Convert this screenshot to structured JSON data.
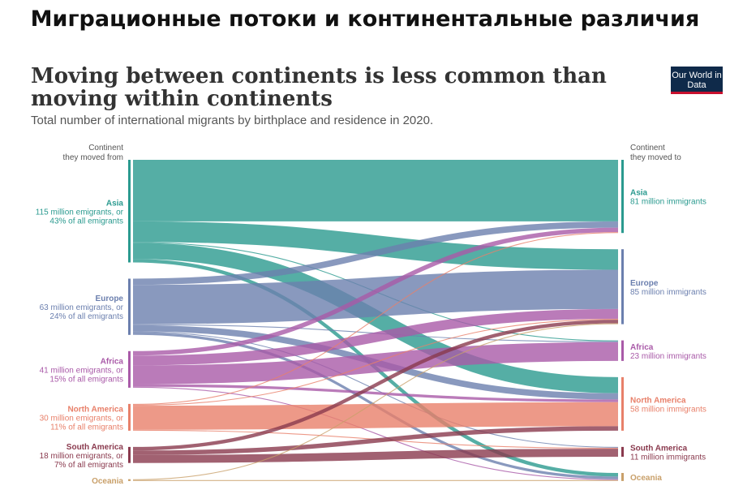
{
  "banner": "Миграционные потоки и континентальные различия",
  "title": "Moving between continents is less common than moving within continents",
  "subtitle": "Total number of international migrants by birthplace and residence in 2020.",
  "logo": "Our World in Data",
  "left_header": [
    "Continent",
    "they moved from"
  ],
  "right_header": [
    "Continent",
    "they moved to"
  ],
  "chart_data": {
    "type": "sankey",
    "nodes_from": [
      {
        "name": "Asia",
        "lines": [
          "115 million emigrants, or",
          "43% of all emigrants"
        ],
        "color": "#2a9a8f"
      },
      {
        "name": "Europe",
        "lines": [
          "63 million emigrants, or",
          "24% of all emigrants"
        ],
        "color": "#6b7fae"
      },
      {
        "name": "Africa",
        "lines": [
          "41 million emigrants, or",
          "15% of all emigrants"
        ],
        "color": "#a95aa8"
      },
      {
        "name": "North America",
        "lines": [
          "30 million emigrants, or",
          "11% of all emigrants"
        ],
        "color": "#e8806a"
      },
      {
        "name": "South America",
        "lines": [
          "18 million emigrants, or",
          "7% of all emigrants"
        ],
        "color": "#8a3a4e"
      },
      {
        "name": "Oceania",
        "lines": [],
        "color": "#c9a06a"
      }
    ],
    "nodes_to": [
      {
        "name": "Asia",
        "lines": [
          "81 million immigrants"
        ]
      },
      {
        "name": "Europe",
        "lines": [
          "85 million immigrants"
        ]
      },
      {
        "name": "Africa",
        "lines": [
          "23 million immigrants"
        ]
      },
      {
        "name": "North America",
        "lines": [
          "58 million immigrants"
        ]
      },
      {
        "name": "South America",
        "lines": [
          "11 million immigrants"
        ]
      },
      {
        "name": "Oceania",
        "lines": []
      }
    ],
    "links": [
      [
        "Asia",
        "Asia",
        69
      ],
      [
        "Asia",
        "Europe",
        23
      ],
      [
        "Asia",
        "Africa",
        1
      ],
      [
        "Asia",
        "North America",
        18
      ],
      [
        "Asia",
        "Oceania",
        4
      ],
      [
        "Europe",
        "Asia",
        7
      ],
      [
        "Europe",
        "Europe",
        44
      ],
      [
        "Europe",
        "Africa",
        1
      ],
      [
        "Europe",
        "North America",
        7
      ],
      [
        "Europe",
        "South America",
        1
      ],
      [
        "Europe",
        "Oceania",
        3
      ],
      [
        "Africa",
        "Asia",
        5
      ],
      [
        "Africa",
        "Europe",
        11
      ],
      [
        "Africa",
        "Africa",
        21
      ],
      [
        "Africa",
        "North America",
        3
      ],
      [
        "Africa",
        "Oceania",
        1
      ],
      [
        "North America",
        "Asia",
        1
      ],
      [
        "North America",
        "Europe",
        1
      ],
      [
        "North America",
        "North America",
        27
      ],
      [
        "North America",
        "South America",
        1
      ],
      [
        "South America",
        "Europe",
        4
      ],
      [
        "South America",
        "North America",
        5
      ],
      [
        "South America",
        "South America",
        9
      ],
      [
        "Oceania",
        "Europe",
        1
      ],
      [
        "Oceania",
        "Oceania",
        1
      ]
    ]
  }
}
